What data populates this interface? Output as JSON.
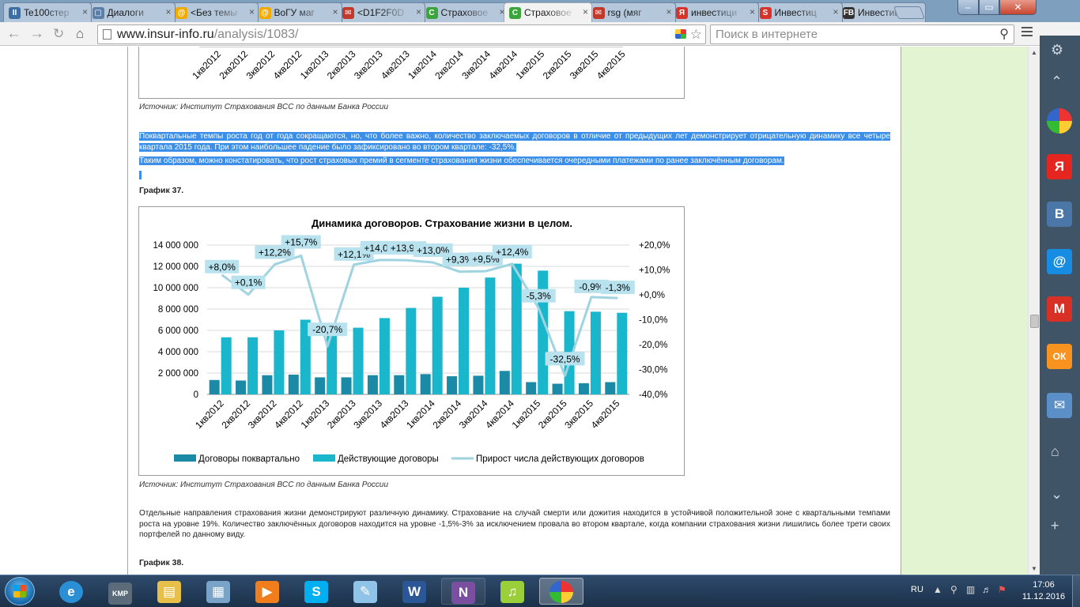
{
  "browser": {
    "tabs": [
      {
        "title": "Te100стер",
        "icon": "pause-icon",
        "color": "#3b6ea5"
      },
      {
        "title": "Диалоги",
        "icon": "chat-icon",
        "color": "#5a7fa8"
      },
      {
        "title": "<Без темы",
        "icon": "mail-at-icon",
        "color": "#f2a900"
      },
      {
        "title": "ВоГУ маг",
        "icon": "mail-at-icon",
        "color": "#f2a900"
      },
      {
        "title": "<D1F2F0D",
        "icon": "envelope-icon",
        "color": "#c0392b"
      },
      {
        "title": "Страховое",
        "icon": "insur-icon",
        "color": "#3aa53a"
      },
      {
        "title": "Страховое",
        "icon": "insur-icon",
        "color": "#3aa53a"
      },
      {
        "title": "rsg (мяг",
        "icon": "envelope-icon",
        "color": "#c0392b"
      },
      {
        "title": "инвестици",
        "icon": "yandex-icon",
        "color": "#d9322b"
      },
      {
        "title": "Инвестиц",
        "icon": "s-icon",
        "color": "#d9322b"
      },
      {
        "title": "Инвестиц",
        "icon": "fb-icon",
        "color": "#333333"
      }
    ],
    "active_tab_index": 6,
    "url_host": "www.insur-info.ru",
    "url_path": "/analysis/1083/",
    "search_placeholder": "Поиск в интернете",
    "window_controls": {
      "minimize": "–",
      "maximize": "▭",
      "close": "✕"
    }
  },
  "top_chart": {
    "tick_labels": [
      "1кв2012",
      "2кв2012",
      "3кв2012",
      "4кв2012",
      "1кв2013",
      "2кв2013",
      "3кв2013",
      "4кв2013",
      "1кв2014",
      "2кв2014",
      "3кв2014",
      "4кв2014",
      "1кв2015",
      "2кв2015",
      "3кв2015",
      "4кв2015"
    ]
  },
  "article": {
    "source_1": "Источник: Институт Страхования ВСС по данным Банка России",
    "para_1": "Поквартальные темпы роста год от года сокращаются, но, что более важно, количество заключаемых договоров в отличие от предыдущих лет демонстрирует отрицательную динамику все четыре квартала 2015 года. При этом наибольшее падение было зафиксировано во втором квартале: -32,5%.",
    "para_2": "Таким образом, можно констатировать, что рост страховых премий в сегменте страхования жизни обеспечивается очередными платежами по ранее заключённым договорам.",
    "heading_37": "График 37.",
    "source_2": "Источник: Институт Страхования ВСС по данным Банка России",
    "para_3": "Отдельные направления страхования жизни демонстрируют различную динамику. Страхование на случай смерти или дожития находится в устойчивой положительной зоне с квартальными темпами роста на уровне 19%. Количество заключённых договоров находится на уровне -1,5%-3% за исключением провала во втором квартале, когда компании страхования жизни лишились более трети своих портфелей по данному виду.",
    "heading_38": "График 38."
  },
  "chart_data": {
    "type": "bar",
    "title": "Динамика договоров. Страхование жизни в целом.",
    "categories": [
      "1кв2012",
      "2кв2012",
      "3кв2012",
      "4кв2012",
      "1кв2013",
      "2кв2013",
      "3кв2013",
      "4кв2013",
      "1кв2014",
      "2кв2014",
      "3кв2014",
      "4кв2014",
      "1кв2015",
      "2кв2015",
      "3кв2015",
      "4кв2015"
    ],
    "series": [
      {
        "name": "Договоры поквартально",
        "type": "bar",
        "axis": "left",
        "color": "#1a8aa6",
        "values": [
          1350000,
          1300000,
          1800000,
          1850000,
          1600000,
          1600000,
          1800000,
          1800000,
          1900000,
          1700000,
          1750000,
          2200000,
          1150000,
          1000000,
          1050000,
          1150000
        ]
      },
      {
        "name": "Действующие договоры",
        "type": "bar",
        "axis": "left",
        "color": "#1ab6cc",
        "values": [
          5350000,
          5350000,
          6000000,
          7000000,
          5500000,
          6250000,
          7150000,
          8100000,
          9150000,
          10000000,
          10950000,
          12250000,
          11600000,
          7800000,
          7750000,
          7650000
        ]
      },
      {
        "name": "Прирост числа действующих договоров",
        "type": "line",
        "axis": "right",
        "color": "#9fd3e0",
        "values": [
          8.0,
          0.1,
          12.2,
          15.7,
          -20.7,
          12.1,
          14.0,
          13.9,
          13.0,
          9.3,
          9.5,
          12.4,
          -5.3,
          -32.5,
          -0.9,
          -1.3
        ],
        "labels": [
          "+8,0%",
          "+0,1%",
          "+12,2%",
          "+15,7%",
          "-20,7%",
          "+12,1%",
          "+14,0%",
          "+13,9%",
          "+13,0%",
          "+9,3%",
          "+9,5%",
          "+12,4%",
          "-5,3%",
          "-32,5%",
          "-0,9%",
          "-1,3%"
        ]
      }
    ],
    "y_left": {
      "ylim": [
        0,
        14000000
      ],
      "ticks": [
        "0",
        "2 000 000",
        "4 000 000",
        "6 000 000",
        "8 000 000",
        "10 000 000",
        "12 000 000",
        "14 000 000"
      ]
    },
    "y_right": {
      "ylim": [
        -40,
        20
      ],
      "ticks": [
        "-40,0%",
        "-30,0%",
        "-20,0%",
        "-10,0%",
        "+0,0%",
        "+10,0%",
        "+20,0%"
      ]
    },
    "grid": true,
    "legend": "bottom"
  },
  "side_panel": {
    "buttons": [
      {
        "name": "gear-icon",
        "glyph": "⚙",
        "color": "#3f5467"
      },
      {
        "name": "chevron-up-icon",
        "glyph": "⌃",
        "color": "#3f5467"
      },
      {
        "name": "browser-logo-icon",
        "glyph": "",
        "color": "#ffffff"
      },
      {
        "name": "yandex-icon",
        "glyph": "Я",
        "color": "#e52620"
      },
      {
        "name": "vk-icon",
        "glyph": "В",
        "color": "#4a76a8"
      },
      {
        "name": "mail-ru-icon",
        "glyph": "@",
        "color": "#168de2"
      },
      {
        "name": "gmail-icon",
        "glyph": "M",
        "color": "#d93025"
      },
      {
        "name": "odnoklassniki-icon",
        "glyph": "ОК",
        "color": "#f7931e"
      },
      {
        "name": "message-icon",
        "glyph": "✉",
        "color": "#5b8fc7"
      },
      {
        "name": "inbox-icon",
        "glyph": "⌂",
        "color": "#3f5467"
      },
      {
        "name": "chevron-down-icon",
        "glyph": "⌄",
        "color": "#3f5467"
      },
      {
        "name": "add-icon",
        "glyph": "+",
        "color": "#3f5467"
      }
    ]
  },
  "taskbar": {
    "apps": [
      {
        "name": "ie-icon",
        "glyph": "e",
        "color": "#2b8fd6"
      },
      {
        "name": "kmplayer-icon",
        "glyph": "KMP",
        "color": "#5b6b7a"
      },
      {
        "name": "explorer-folder-icon",
        "glyph": "▤",
        "color": "#e7c04a"
      },
      {
        "name": "calculator-icon",
        "glyph": "▦",
        "color": "#7aa3c9"
      },
      {
        "name": "media-player-icon",
        "glyph": "▶",
        "color": "#f07e1c"
      },
      {
        "name": "skype-icon",
        "glyph": "S",
        "color": "#00aff0"
      },
      {
        "name": "paint-icon",
        "glyph": "✎",
        "color": "#8fc3e8"
      },
      {
        "name": "word-icon",
        "glyph": "W",
        "color": "#2b5797"
      },
      {
        "name": "onenote-icon",
        "glyph": "N",
        "color": "#7b4fa0"
      },
      {
        "name": "music-player-icon",
        "glyph": "♫",
        "color": "#9bcf3a"
      },
      {
        "name": "browser-taskbar-icon",
        "glyph": "",
        "color": "#ffffff"
      }
    ],
    "active_app_index": 10,
    "language": "RU",
    "time": "17:06",
    "date": "11.12.2016"
  }
}
